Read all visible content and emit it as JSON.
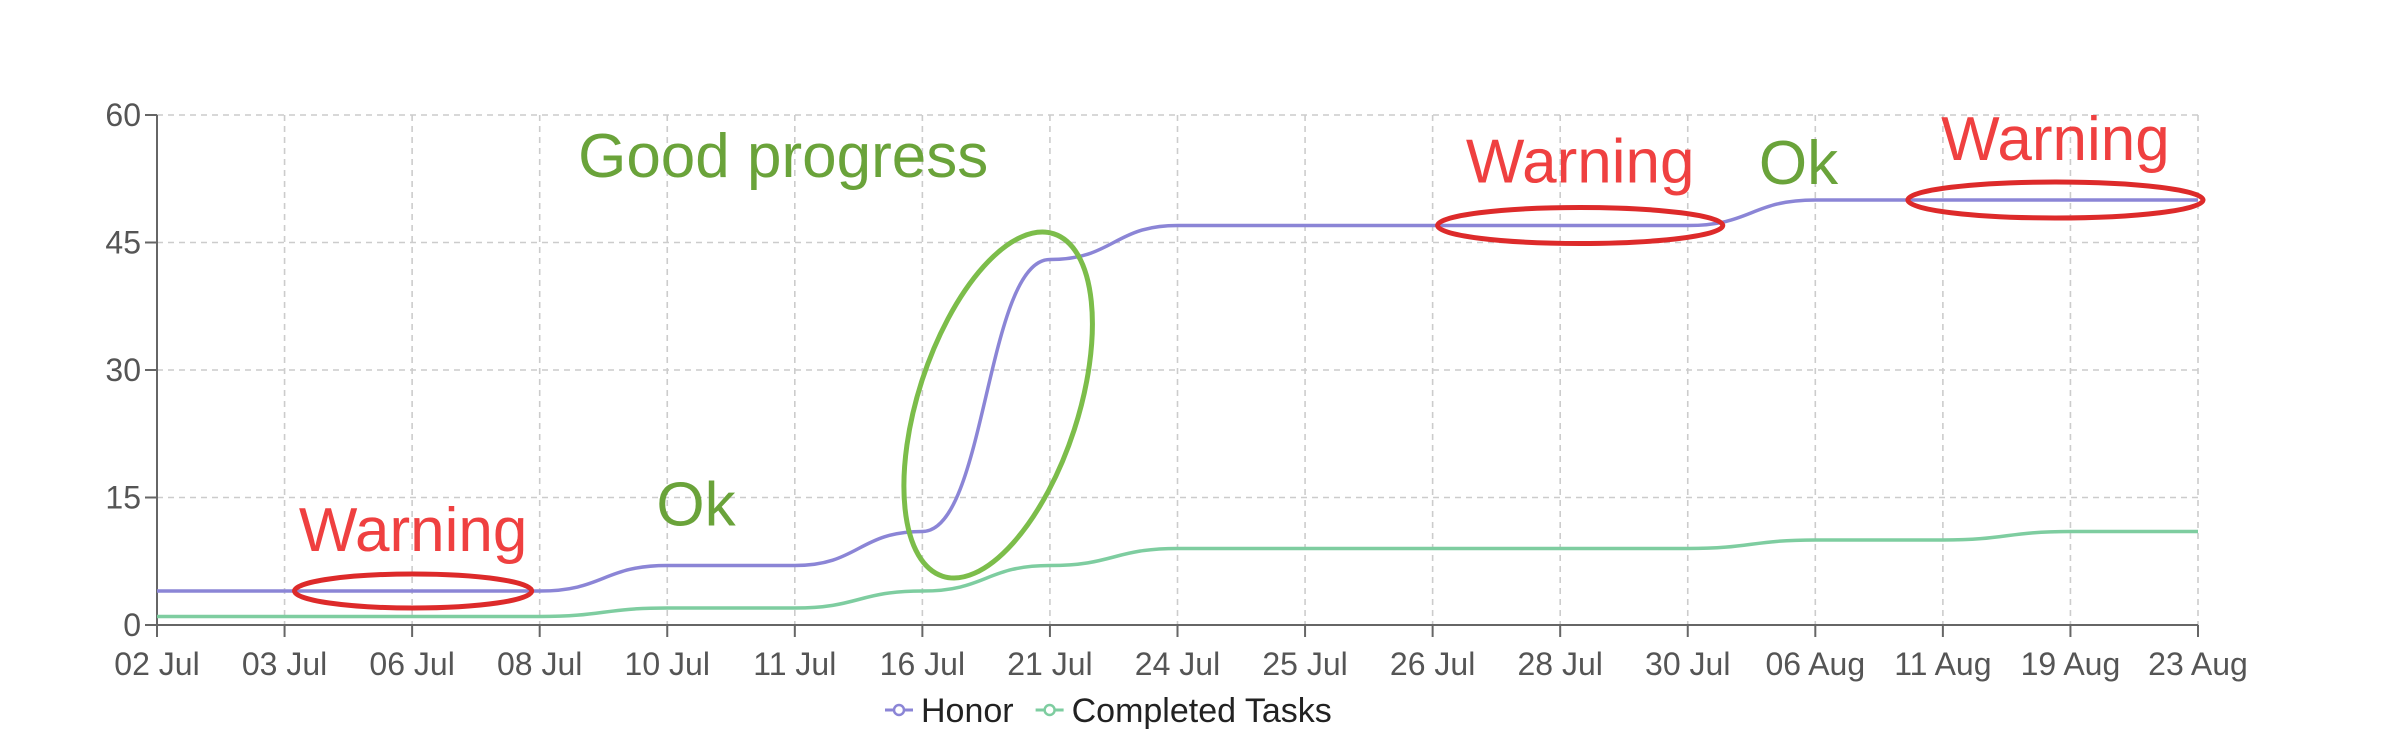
{
  "chart_data": {
    "type": "line",
    "title": "",
    "xlabel": "",
    "ylabel": "",
    "categories": [
      "02 Jul",
      "03 Jul",
      "06 Jul",
      "08 Jul",
      "10 Jul",
      "11 Jul",
      "16 Jul",
      "21 Jul",
      "24 Jul",
      "25 Jul",
      "26 Jul",
      "28 Jul",
      "30 Jul",
      "06 Aug",
      "11 Aug",
      "19 Aug",
      "23 Aug"
    ],
    "y_ticks": [
      "0",
      "15",
      "30",
      "45",
      "60"
    ],
    "ylim": [
      0,
      60
    ],
    "grid": true,
    "legend_position": "bottom",
    "series": [
      {
        "name": "Honor",
        "color": "#8b85d6",
        "values": [
          4,
          4,
          4,
          4,
          7,
          7,
          11,
          43,
          47,
          47,
          47,
          47,
          47,
          50,
          50,
          50,
          50
        ]
      },
      {
        "name": "Completed Tasks",
        "color": "#7ecda0",
        "values": [
          1,
          1,
          1,
          1,
          2,
          2,
          4,
          7,
          9,
          9,
          9,
          9,
          9,
          10,
          10,
          11,
          11
        ]
      }
    ],
    "annotations": [
      {
        "text": "Warning",
        "color": "#ef4040",
        "shape_color": "#dd2a2a",
        "x_from": "03 Jul",
        "x_to": "08 Jul",
        "y": 4
      },
      {
        "text": "Ok",
        "color": "#6aa33a",
        "x_from": "10 Jul",
        "x_to": "11 Jul",
        "y": 7
      },
      {
        "text": "Good progress",
        "color": "#6aa33a",
        "shape_color": "#7cbd4a",
        "x_from": "16 Jul",
        "x_to": "21 Jul",
        "y": 30
      },
      {
        "text": "Warning",
        "color": "#ef4040",
        "shape_color": "#dd2a2a",
        "x_from": "26 Jul",
        "x_to": "30 Jul",
        "y": 47
      },
      {
        "text": "Ok",
        "color": "#6aa33a",
        "x_from": "30 Jul",
        "x_to": "06 Aug",
        "y": 50
      },
      {
        "text": "Warning",
        "color": "#ef4040",
        "shape_color": "#dd2a2a",
        "x_from": "11 Aug",
        "x_to": "23 Aug",
        "y": 50
      }
    ]
  }
}
